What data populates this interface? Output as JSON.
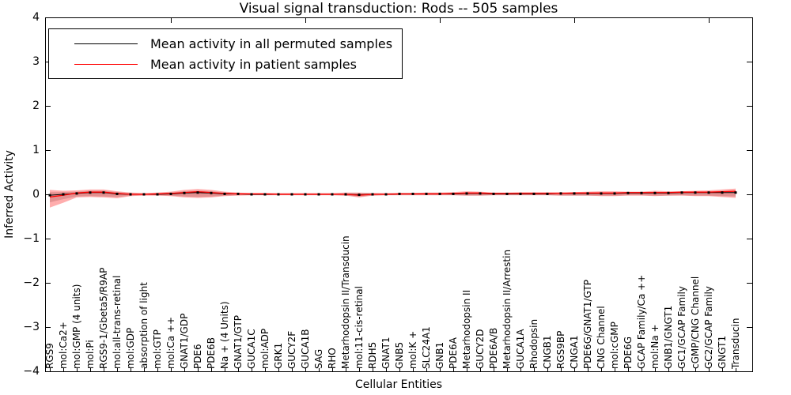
{
  "title": "Visual signal transduction: Rods -- 505 samples",
  "axes": {
    "xlabel": "Cellular Entities",
    "ylabel": "Inferred Activity",
    "ylim": [
      -4,
      4
    ],
    "ytick_labels": [
      "4",
      "3",
      "2",
      "1",
      "0",
      "−1",
      "−2",
      "−3",
      "−4"
    ]
  },
  "legend": [
    {
      "label": "Mean activity in all permuted samples",
      "color": "#000000"
    },
    {
      "label": "Mean activity in patient samples",
      "color": "#ff0000"
    }
  ],
  "chart_data": {
    "type": "line",
    "title": "Visual signal transduction: Rods -- 505 samples",
    "xlabel": "Cellular Entities",
    "ylabel": "Inferred Activity",
    "ylim": [
      -4,
      4
    ],
    "yticks": [
      4,
      3,
      2,
      1,
      0,
      -1,
      -2,
      -3,
      -4
    ],
    "x_major_tick_indices": [
      9,
      19,
      29,
      39,
      49
    ],
    "legend_position": "upper left",
    "grid": false,
    "categories": [
      "RGS9",
      "mol:Ca2+",
      "mol:GMP (4 units)",
      "mol:Pi",
      "RGS9-1/Gbeta5/R9AP",
      "mol:all-trans-retinal",
      "mol:GDP",
      "absorption of light",
      "mol:GTP",
      "mol:Ca ++",
      "GNAT1/GDP",
      "PDE6",
      "PDE6B",
      "Na + (4 Units)",
      "GNAT1/GTP",
      "GUCA1C",
      "mol:ADP",
      "GRK1",
      "GUCY2F",
      "GUCA1B",
      "SAG",
      "RHO",
      "Metarhodopsin II/Transducin",
      "mol:11-cis-retinal",
      "RDH5",
      "GNAT1",
      "GNB5",
      "mol:K +",
      "SLC24A1",
      "GNB1",
      "PDE6A",
      "Metarhodopsin II",
      "GUCY2D",
      "PDE6A/B",
      "Metarhodopsin II/Arrestin",
      "GUCA1A",
      "Rhodopsin",
      "CNGB1",
      "RGS9BP",
      "CNGA1",
      "PDE6G/GNAT1/GTP",
      "CNG Channel",
      "mol:cGMP",
      "PDE6G",
      "GCAP Family/Ca ++",
      "mol:Na +",
      "GNB1/GNGT1",
      "GC1/GCAP Family",
      "cGMP/CNG Channel",
      "GC2/GCAP Family",
      "GNGT1",
      "Transducin"
    ],
    "series": [
      {
        "name": "Mean activity in all permuted samples",
        "color": "#000000",
        "marker": "square",
        "band_color": "rgba(0,0,0,0.16)",
        "values": [
          -0.02,
          0.0,
          0.02,
          0.04,
          0.04,
          0.01,
          0.0,
          0.0,
          0.0,
          0.01,
          0.03,
          0.04,
          0.03,
          0.01,
          0.01,
          0.0,
          0.0,
          0.0,
          0.0,
          0.0,
          0.0,
          0.0,
          0.0,
          -0.01,
          0.0,
          0.0,
          0.01,
          0.01,
          0.01,
          0.01,
          0.01,
          0.02,
          0.02,
          0.01,
          0.01,
          0.01,
          0.01,
          0.01,
          0.02,
          0.02,
          0.02,
          0.02,
          0.02,
          0.03,
          0.03,
          0.03,
          0.03,
          0.04,
          0.04,
          0.04,
          0.04,
          0.04
        ],
        "band_lo": [
          -0.18,
          -0.11,
          -0.05,
          -0.04,
          -0.05,
          -0.06,
          -0.03,
          -0.02,
          -0.02,
          -0.03,
          -0.05,
          -0.06,
          -0.05,
          -0.03,
          -0.02,
          -0.02,
          -0.02,
          -0.02,
          -0.02,
          -0.02,
          -0.02,
          -0.02,
          -0.03,
          -0.05,
          -0.03,
          -0.02,
          -0.02,
          -0.02,
          -0.02,
          -0.02,
          -0.02,
          -0.03,
          -0.03,
          -0.02,
          -0.02,
          -0.02,
          -0.02,
          -0.02,
          -0.03,
          -0.03,
          -0.03,
          -0.03,
          -0.03,
          -0.02,
          -0.02,
          -0.03,
          -0.03,
          -0.02,
          -0.03,
          -0.03,
          -0.04,
          -0.05
        ],
        "band_hi": [
          0.05,
          0.05,
          0.06,
          0.08,
          0.08,
          0.05,
          0.03,
          0.02,
          0.03,
          0.04,
          0.07,
          0.08,
          0.07,
          0.04,
          0.03,
          0.02,
          0.02,
          0.02,
          0.02,
          0.02,
          0.02,
          0.02,
          0.03,
          0.03,
          0.03,
          0.02,
          0.03,
          0.03,
          0.03,
          0.03,
          0.03,
          0.04,
          0.04,
          0.03,
          0.03,
          0.03,
          0.03,
          0.03,
          0.04,
          0.04,
          0.04,
          0.04,
          0.04,
          0.05,
          0.05,
          0.05,
          0.05,
          0.06,
          0.06,
          0.06,
          0.07,
          0.07
        ]
      },
      {
        "name": "Mean activity in patient samples",
        "color": "#ff0000",
        "marker": "none",
        "band_color": "rgba(255,0,0,0.32)",
        "values": [
          -0.06,
          -0.02,
          0.03,
          0.05,
          0.05,
          0.02,
          0.0,
          0.0,
          0.01,
          0.02,
          0.04,
          0.06,
          0.04,
          0.02,
          0.01,
          0.01,
          0.01,
          0.0,
          0.0,
          0.0,
          0.0,
          0.0,
          0.0,
          -0.02,
          0.0,
          0.0,
          0.01,
          0.01,
          0.01,
          0.01,
          0.02,
          0.03,
          0.03,
          0.02,
          0.02,
          0.02,
          0.02,
          0.02,
          0.02,
          0.03,
          0.03,
          0.03,
          0.03,
          0.04,
          0.04,
          0.04,
          0.04,
          0.05,
          0.05,
          0.05,
          0.06,
          0.07
        ],
        "band_lo": [
          -0.3,
          -0.19,
          -0.07,
          -0.06,
          -0.07,
          -0.09,
          -0.04,
          -0.03,
          -0.03,
          -0.04,
          -0.07,
          -0.08,
          -0.07,
          -0.04,
          -0.03,
          -0.02,
          -0.02,
          -0.02,
          -0.02,
          -0.02,
          -0.02,
          -0.02,
          -0.03,
          -0.07,
          -0.03,
          -0.02,
          -0.02,
          -0.02,
          -0.02,
          -0.02,
          -0.02,
          -0.03,
          -0.03,
          -0.02,
          -0.02,
          -0.02,
          -0.02,
          -0.02,
          -0.03,
          -0.03,
          -0.03,
          -0.04,
          -0.04,
          -0.03,
          -0.03,
          -0.04,
          -0.03,
          -0.03,
          -0.04,
          -0.04,
          -0.06,
          -0.08
        ],
        "band_hi": [
          0.1,
          0.08,
          0.09,
          0.11,
          0.11,
          0.07,
          0.04,
          0.03,
          0.04,
          0.06,
          0.1,
          0.12,
          0.1,
          0.06,
          0.04,
          0.03,
          0.03,
          0.03,
          0.03,
          0.03,
          0.03,
          0.03,
          0.04,
          0.04,
          0.03,
          0.03,
          0.03,
          0.03,
          0.04,
          0.04,
          0.05,
          0.07,
          0.06,
          0.04,
          0.04,
          0.05,
          0.05,
          0.05,
          0.05,
          0.05,
          0.06,
          0.07,
          0.07,
          0.06,
          0.06,
          0.08,
          0.07,
          0.07,
          0.08,
          0.09,
          0.11,
          0.13
        ]
      }
    ]
  }
}
